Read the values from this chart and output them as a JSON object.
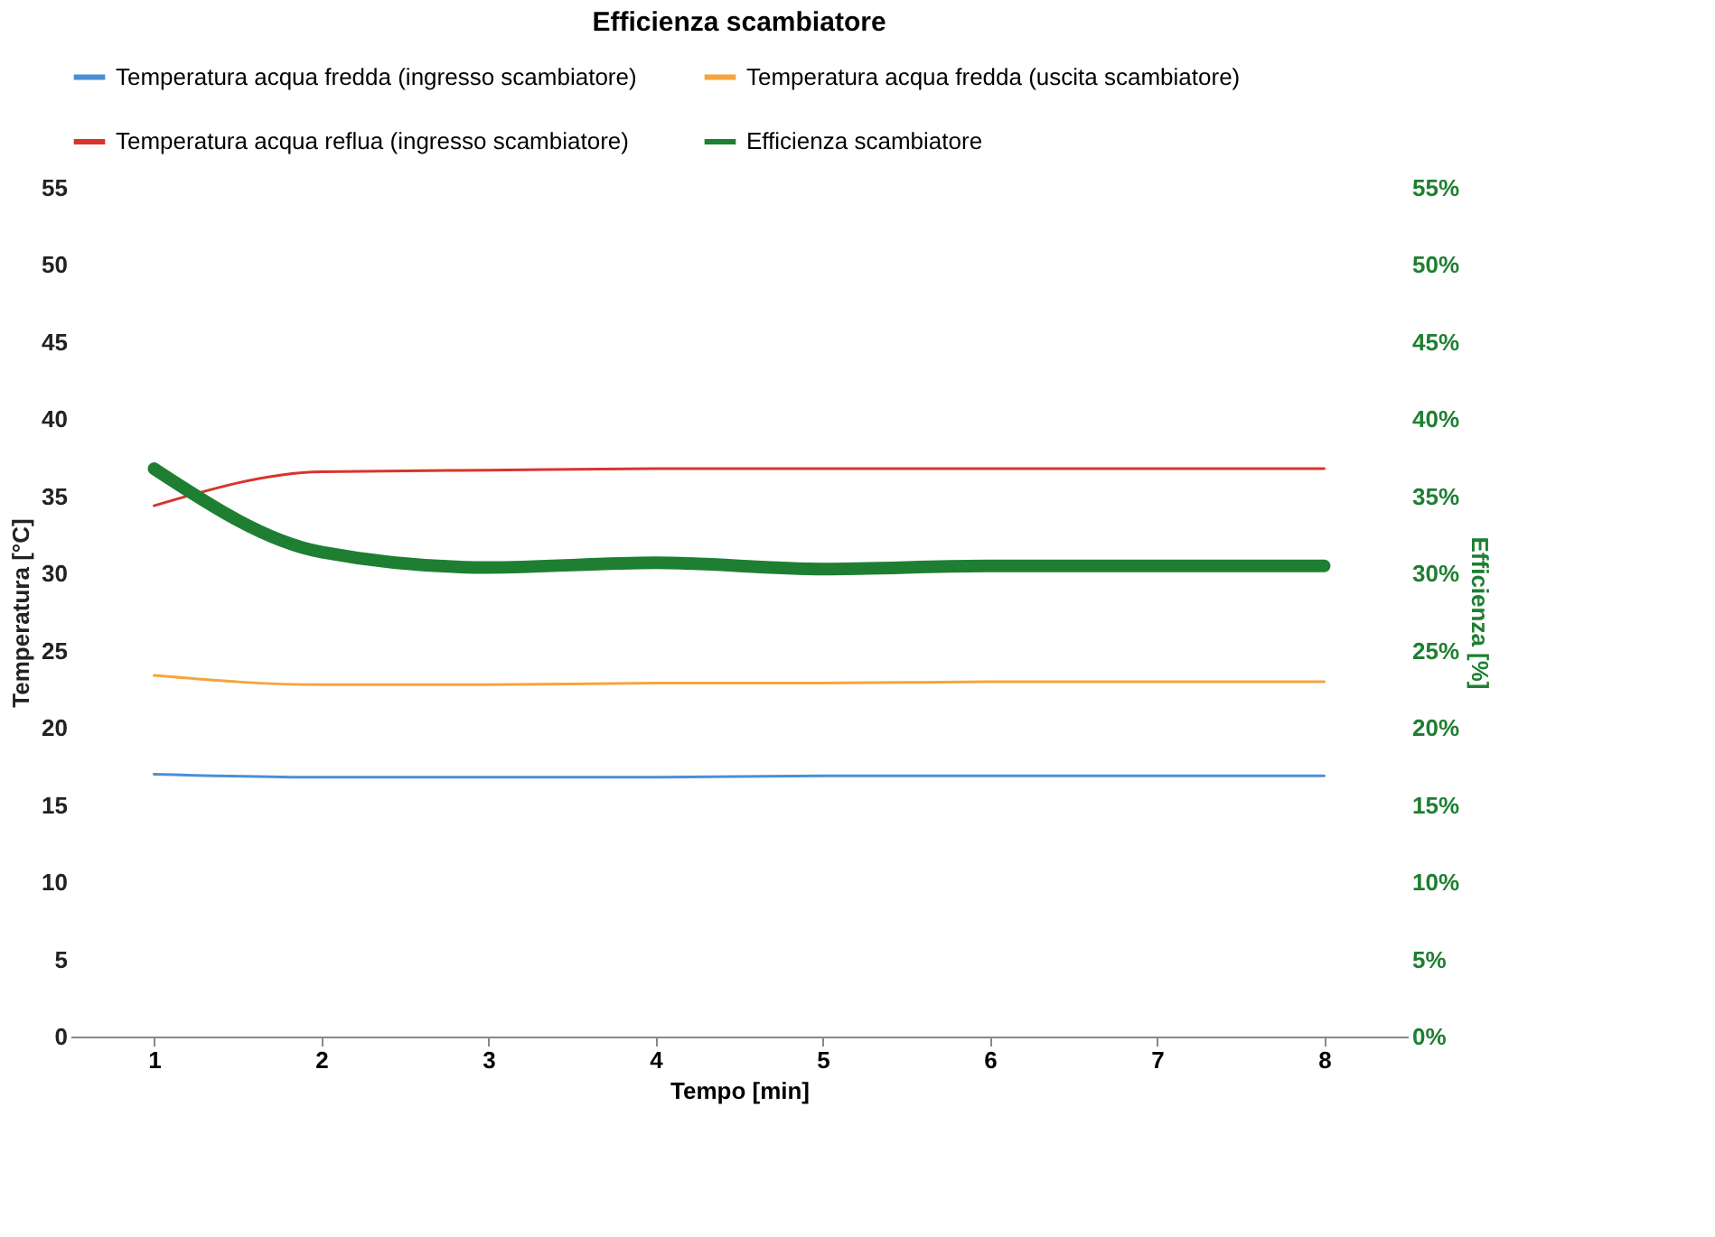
{
  "chart_data": {
    "type": "line",
    "title": "Efficienza scambiatore",
    "xlabel": "Tempo [min]",
    "ylabel": "Temperatura [°C]",
    "y2label": "Efficienza [%]",
    "categories": [
      "1",
      "2",
      "3",
      "4",
      "5",
      "6",
      "7",
      "8"
    ],
    "series": [
      {
        "name": "Temperatura acqua fredda (ingresso scambiatore)",
        "color": "#4a8fd6",
        "values": [
          17.0,
          16.8,
          16.8,
          16.8,
          16.9,
          16.9,
          16.9,
          16.9
        ]
      },
      {
        "name": "Temperatura acqua fredda (uscita scambiatore)",
        "color": "#f5a53a",
        "values": [
          23.4,
          22.8,
          22.8,
          22.9,
          22.9,
          23.0,
          23.0,
          23.0
        ]
      },
      {
        "name": "Temperatura acqua reflua (ingresso scambiatore)",
        "color": "#d9342b",
        "values": [
          34.4,
          36.6,
          36.7,
          36.8,
          36.8,
          36.8,
          36.8,
          36.8
        ]
      },
      {
        "name": "Efficienza scambiatore",
        "color": "#1e7f32",
        "axis": "y2",
        "values": [
          36.8,
          31.4,
          30.4,
          30.7,
          30.3,
          30.5,
          30.5,
          30.5
        ]
      }
    ],
    "ylim": [
      0,
      55
    ],
    "yticks": [
      0,
      5,
      10,
      15,
      20,
      25,
      30,
      35,
      40,
      45,
      50,
      55
    ],
    "y2lim": [
      0,
      55
    ],
    "y2ticks": [
      {
        "value": 0,
        "label": "0%"
      },
      {
        "value": 5,
        "label": "5%"
      },
      {
        "value": 10,
        "label": "10%"
      },
      {
        "value": 15,
        "label": "15%"
      },
      {
        "value": 20,
        "label": "20%"
      },
      {
        "value": 25,
        "label": "25%"
      },
      {
        "value": 30,
        "label": "30%"
      },
      {
        "value": 35,
        "label": "35%"
      },
      {
        "value": 40,
        "label": "40%"
      },
      {
        "value": 45,
        "label": "45%"
      },
      {
        "value": 50,
        "label": "50%"
      },
      {
        "value": 55,
        "label": "55%"
      }
    ],
    "grid": false,
    "legend": "top",
    "line_style": "solid",
    "marker": "none"
  }
}
